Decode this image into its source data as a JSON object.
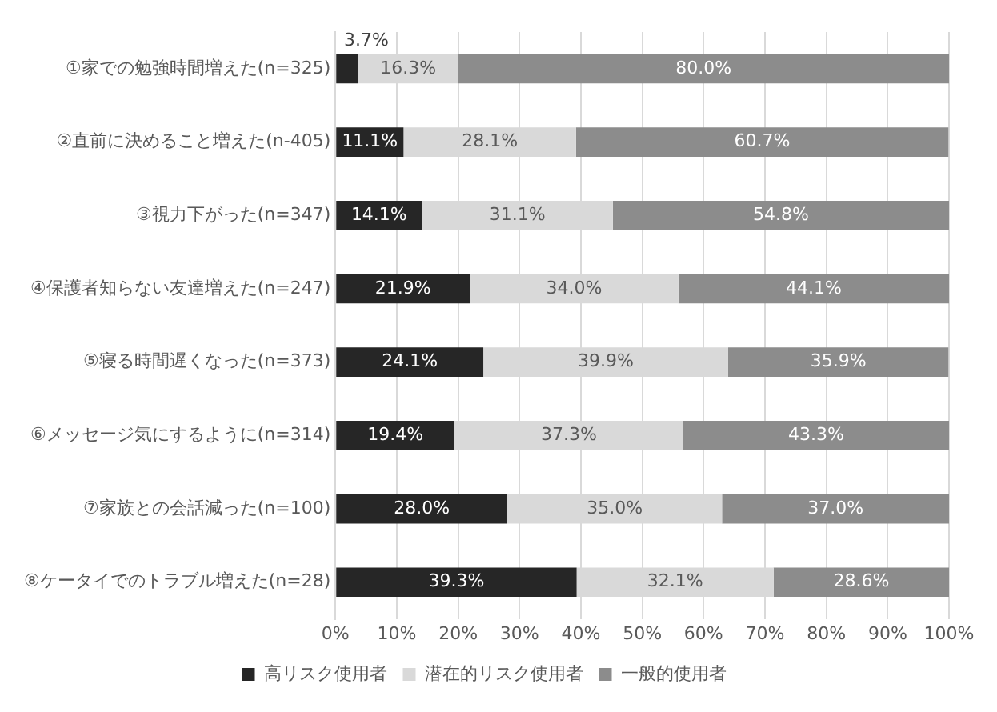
{
  "chart_data": {
    "type": "bar",
    "orientation": "horizontal",
    "stacked": true,
    "categories": [
      "①家での勉強時間増えた(n=325)",
      "②直前に決めること増えた(n-405)",
      "③視力下がった(n=347)",
      "④保護者知らない友達増えた(n=247)",
      "⑤寝る時間遅くなった(n=373)",
      "⑥メッセージ気にするように(n=314)",
      "⑦家族との会話減った(n=100)",
      "⑧ケータイでのトラブル増えた(n=28)"
    ],
    "series": [
      {
        "name": "高リスク使用者",
        "color": "#262626",
        "values": [
          3.7,
          11.1,
          14.1,
          21.9,
          24.1,
          19.4,
          28.0,
          39.3
        ],
        "value_labels": [
          "3.7%",
          "11.1%",
          "14.1%",
          "21.9%",
          "24.1%",
          "19.4%",
          "28.0%",
          "39.3%"
        ]
      },
      {
        "name": "潜在的リスク使用者",
        "color": "#d9d9d9",
        "values": [
          16.3,
          28.1,
          31.1,
          34.0,
          39.9,
          37.3,
          35.0,
          32.1
        ],
        "value_labels": [
          "16.3%",
          "28.1%",
          "31.1%",
          "34.0%",
          "39.9%",
          "37.3%",
          "35.0%",
          "32.1%"
        ]
      },
      {
        "name": "一般的使用者",
        "color": "#8c8c8c",
        "values": [
          80.0,
          60.7,
          54.8,
          44.1,
          35.9,
          43.3,
          37.0,
          28.6
        ],
        "value_labels": [
          "80.0%",
          "60.7%",
          "54.8%",
          "44.1%",
          "35.9%",
          "43.3%",
          "37.0%",
          "28.6%"
        ]
      }
    ],
    "xlim": [
      0,
      100
    ],
    "xticks": [
      {
        "value": 0,
        "label": "0%"
      },
      {
        "value": 10,
        "label": "10%"
      },
      {
        "value": 20,
        "label": "20%"
      },
      {
        "value": 30,
        "label": "30%"
      },
      {
        "value": 40,
        "label": "40%"
      },
      {
        "value": 50,
        "label": "50%"
      },
      {
        "value": 60,
        "label": "60%"
      },
      {
        "value": 70,
        "label": "70%"
      },
      {
        "value": 80,
        "label": "80%"
      },
      {
        "value": 90,
        "label": "90%"
      },
      {
        "value": 100,
        "label": "100%"
      }
    ],
    "grid": "x",
    "legend": "bottom"
  }
}
